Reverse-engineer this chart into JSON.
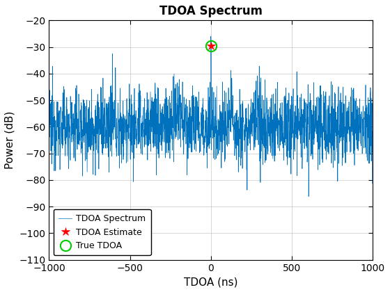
{
  "title": "TDOA Spectrum",
  "xlabel": "TDOA (ns)",
  "ylabel": "Power (dB)",
  "xlim": [
    -1000,
    1000
  ],
  "ylim": [
    -110,
    -20
  ],
  "yticks": [
    -20,
    -30,
    -40,
    -50,
    -60,
    -70,
    -80,
    -90,
    -100,
    -110
  ],
  "xticks": [
    -1000,
    -500,
    0,
    500,
    1000
  ],
  "line_color": "#0072BD",
  "estimate_color": "red",
  "true_color": "#00CC00",
  "tdoa_peak_x": 0,
  "tdoa_peak_y": -29.5,
  "noise_floor_mean": -60,
  "noise_floor_std": 7,
  "seed": 12345,
  "n_points": 2001,
  "legend_labels": [
    "TDOA Spectrum",
    "TDOA Estimate",
    "True TDOA"
  ],
  "background_color": "#ffffff",
  "grid_color": "#b0b0b0"
}
